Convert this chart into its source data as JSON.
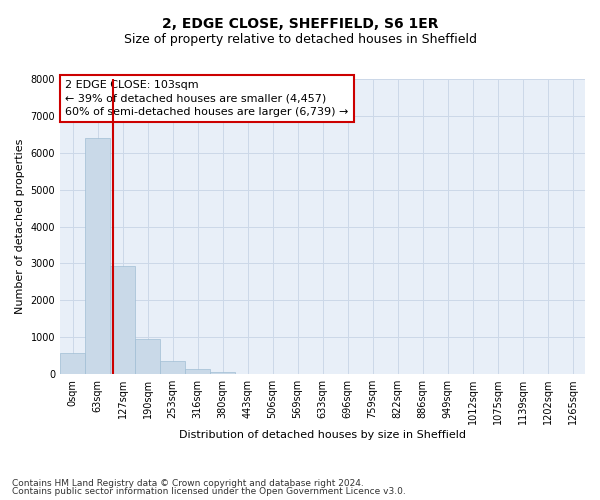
{
  "title": "2, EDGE CLOSE, SHEFFIELD, S6 1ER",
  "subtitle": "Size of property relative to detached houses in Sheffield",
  "xlabel": "Distribution of detached houses by size in Sheffield",
  "ylabel": "Number of detached properties",
  "footnote1": "Contains HM Land Registry data © Crown copyright and database right 2024.",
  "footnote2": "Contains public sector information licensed under the Open Government Licence v3.0.",
  "annotation_title": "2 EDGE CLOSE: 103sqm",
  "annotation_line1": "← 39% of detached houses are smaller (4,457)",
  "annotation_line2": "60% of semi-detached houses are larger (6,739) →",
  "bar_color": "#c9d9e8",
  "bar_edge_color": "#a0bed4",
  "grid_color": "#ccd8e8",
  "background_color": "#e8eff8",
  "vline_color": "#cc0000",
  "annotation_box_edge": "#cc0000",
  "categories": [
    "0sqm",
    "63sqm",
    "127sqm",
    "190sqm",
    "253sqm",
    "316sqm",
    "380sqm",
    "443sqm",
    "506sqm",
    "569sqm",
    "633sqm",
    "696sqm",
    "759sqm",
    "822sqm",
    "886sqm",
    "949sqm",
    "1012sqm",
    "1075sqm",
    "1139sqm",
    "1202sqm",
    "1265sqm"
  ],
  "values": [
    580,
    6400,
    2920,
    960,
    350,
    150,
    70,
    0,
    0,
    0,
    0,
    0,
    0,
    0,
    0,
    0,
    0,
    0,
    0,
    0,
    0
  ],
  "ylim": [
    0,
    8000
  ],
  "yticks": [
    0,
    1000,
    2000,
    3000,
    4000,
    5000,
    6000,
    7000,
    8000
  ],
  "vline_x": 1.63,
  "title_fontsize": 10,
  "subtitle_fontsize": 9,
  "axis_label_fontsize": 8,
  "tick_fontsize": 7,
  "annotation_fontsize": 8,
  "footnote_fontsize": 6.5
}
